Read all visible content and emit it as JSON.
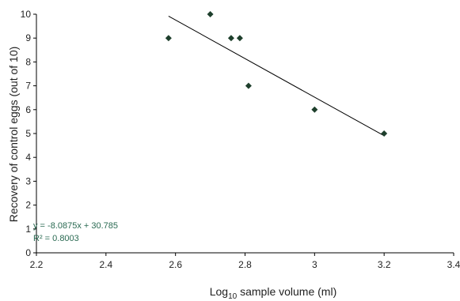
{
  "chart_data": {
    "type": "scatter",
    "xlabel": "Log",
    "xlabel_subscript": "10",
    "xlabel_suffix": " sample volume (ml)",
    "ylabel": "Recovery of control eggs (out of 10)",
    "xlim": [
      2.2,
      3.4
    ],
    "ylim": [
      0,
      10
    ],
    "x_ticks": [
      "2.2",
      "2.4",
      "2.6",
      "2.8",
      "3",
      "3.2",
      "3.4"
    ],
    "y_ticks": [
      "0",
      "1",
      "2",
      "3",
      "4",
      "5",
      "6",
      "7",
      "8",
      "9",
      "10"
    ],
    "grid": false,
    "points": [
      {
        "x": 2.58,
        "y": 9
      },
      {
        "x": 2.7,
        "y": 10
      },
      {
        "x": 2.76,
        "y": 9
      },
      {
        "x": 2.785,
        "y": 9
      },
      {
        "x": 2.81,
        "y": 7
      },
      {
        "x": 3.0,
        "y": 6
      },
      {
        "x": 3.2,
        "y": 5
      }
    ],
    "trendline": {
      "slope": -8.0875,
      "intercept": 30.785,
      "x_range": [
        2.58,
        3.2
      ]
    },
    "annotations": {
      "equation": "y = -8.0875x + 30.785",
      "r2": "R² = 0.8003"
    },
    "marker_color": "#1e3f2c",
    "line_color": "#000000"
  }
}
